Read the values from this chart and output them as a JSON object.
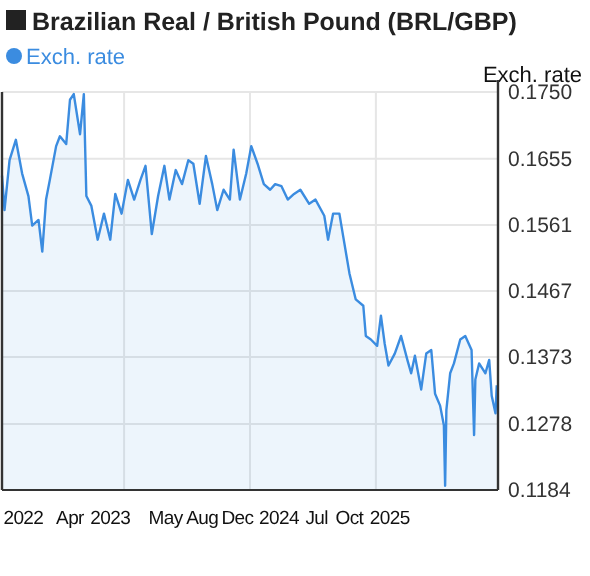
{
  "chart_data": {
    "type": "area",
    "title": "Brazilian Real / British Pound (BRL/GBP)",
    "ylabel": "Exch. rate",
    "legend": "top left",
    "grid": true,
    "marker": "none",
    "line_style": "solid",
    "xlim": [
      2022.03,
      2025.97
    ],
    "ylim": [
      0.1184,
      0.175
    ],
    "yticks": [
      {
        "value": 0.1184,
        "label": "0.1184"
      },
      {
        "value": 0.1278,
        "label": "0.1278"
      },
      {
        "value": 0.1373,
        "label": "0.1373"
      },
      {
        "value": 0.1467,
        "label": "0.1467"
      },
      {
        "value": 0.1561,
        "label": "0.1561"
      },
      {
        "value": 0.1655,
        "label": "0.1655"
      },
      {
        "value": 0.175,
        "label": "0.1750"
      }
    ],
    "xticks": [
      {
        "value": 2022.2,
        "label": "2022"
      },
      {
        "value": 2022.57,
        "label": "Apr"
      },
      {
        "value": 2022.89,
        "label": "2023"
      },
      {
        "value": 2023.33,
        "label": "May"
      },
      {
        "value": 2023.62,
        "label": "Aug"
      },
      {
        "value": 2023.9,
        "label": "Dec"
      },
      {
        "value": 2024.23,
        "label": "2024"
      },
      {
        "value": 2024.53,
        "label": "Jul"
      },
      {
        "value": 2024.79,
        "label": "Oct"
      },
      {
        "value": 2025.11,
        "label": "2025"
      },
      {
        "value": 2023.0,
        "label": null
      },
      {
        "value": 2024.0,
        "label": null
      },
      {
        "value": 2025.0,
        "label": null
      }
    ],
    "series": [
      {
        "name": "Exch. rate",
        "color": "#3b8ce0",
        "x": [
          2022.03,
          2022.05,
          2022.09,
          2022.14,
          2022.19,
          2022.24,
          2022.27,
          2022.32,
          2022.35,
          2022.38,
          2022.41,
          2022.46,
          2022.49,
          2022.54,
          2022.57,
          2022.6,
          2022.65,
          2022.68,
          2022.7,
          2022.74,
          2022.79,
          2022.84,
          2022.89,
          2022.93,
          2022.98,
          2023.03,
          2023.08,
          2023.13,
          2023.17,
          2023.22,
          2023.27,
          2023.32,
          2023.36,
          2023.41,
          2023.46,
          2023.51,
          2023.55,
          2023.6,
          2023.65,
          2023.7,
          2023.74,
          2023.79,
          2023.84,
          2023.87,
          2023.92,
          2023.97,
          2024.01,
          2024.06,
          2024.11,
          2024.16,
          2024.2,
          2024.25,
          2024.3,
          2024.35,
          2024.4,
          2024.47,
          2024.52,
          2024.59,
          2024.62,
          2024.66,
          2024.71,
          2024.74,
          2024.79,
          2024.84,
          2024.9,
          2024.92,
          2024.96,
          2025.01,
          2025.04,
          2025.07,
          2025.1,
          2025.15,
          2025.2,
          2025.25,
          2025.28,
          2025.31,
          2025.36,
          2025.4,
          2025.44,
          2025.47,
          2025.51,
          2025.54,
          2025.55,
          2025.56,
          2025.59,
          2025.62,
          2025.67,
          2025.71,
          2025.76,
          2025.78,
          2025.79,
          2025.82,
          2025.87,
          2025.9,
          2025.92,
          2025.95,
          2025.96
        ],
        "values": [
          0.1631,
          0.1582,
          0.1653,
          0.1682,
          0.1634,
          0.1602,
          0.156,
          0.1568,
          0.1523,
          0.1597,
          0.1625,
          0.1673,
          0.1687,
          0.1676,
          0.1739,
          0.1747,
          0.169,
          0.1747,
          0.1602,
          0.1588,
          0.154,
          0.1577,
          0.154,
          0.1605,
          0.1577,
          0.1625,
          0.1597,
          0.1625,
          0.1645,
          0.1548,
          0.1602,
          0.1645,
          0.1597,
          0.1639,
          0.1619,
          0.1653,
          0.1648,
          0.1591,
          0.1659,
          0.1619,
          0.1582,
          0.1611,
          0.1597,
          0.1668,
          0.1597,
          0.1634,
          0.1673,
          0.1648,
          0.1619,
          0.1611,
          0.1619,
          0.1616,
          0.1597,
          0.1605,
          0.1611,
          0.1591,
          0.1597,
          0.1574,
          0.154,
          0.1577,
          0.1577,
          0.1545,
          0.1492,
          0.1455,
          0.1446,
          0.1403,
          0.1398,
          0.1389,
          0.1432,
          0.1392,
          0.1361,
          0.1378,
          0.1403,
          0.1369,
          0.135,
          0.1375,
          0.1327,
          0.1378,
          0.1383,
          0.1321,
          0.1304,
          0.1276,
          0.119,
          0.1298,
          0.135,
          0.1364,
          0.1398,
          0.1403,
          0.1383,
          0.1262,
          0.1341,
          0.1364,
          0.135,
          0.1369,
          0.1318,
          0.1293,
          0.1333
        ]
      }
    ]
  }
}
